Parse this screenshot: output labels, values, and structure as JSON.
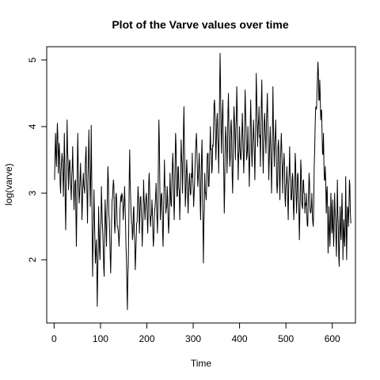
{
  "chart_data": {
    "type": "line",
    "title": "Plot of the Varve values over time",
    "xlabel": "Time",
    "ylabel": "log(varve)",
    "xlim": [
      -16,
      650
    ],
    "ylim": [
      1.05,
      5.2
    ],
    "xticks": [
      0,
      100,
      200,
      300,
      400,
      500,
      600
    ],
    "yticks": [
      2,
      3,
      4,
      5
    ],
    "grid": false,
    "legend": "none",
    "anchors": [
      [
        1,
        3.2
      ],
      [
        3,
        3.9
      ],
      [
        5,
        3.4
      ],
      [
        7,
        4.05
      ],
      [
        9,
        3.3
      ],
      [
        11,
        3.75
      ],
      [
        14,
        3.0
      ],
      [
        17,
        3.6
      ],
      [
        20,
        2.95
      ],
      [
        22,
        3.9
      ],
      [
        25,
        2.45
      ],
      [
        28,
        4.1
      ],
      [
        31,
        3.05
      ],
      [
        34,
        3.5
      ],
      [
        37,
        2.9
      ],
      [
        40,
        3.7
      ],
      [
        43,
        2.75
      ],
      [
        46,
        3.2
      ],
      [
        48,
        2.2
      ],
      [
        51,
        3.9
      ],
      [
        54,
        2.85
      ],
      [
        57,
        3.45
      ],
      [
        60,
        2.6
      ],
      [
        63,
        3.3
      ],
      [
        66,
        3.0
      ],
      [
        69,
        3.7
      ],
      [
        72,
        2.55
      ],
      [
        75,
        3.95
      ],
      [
        78,
        2.8
      ],
      [
        80,
        4.02
      ],
      [
        83,
        1.75
      ],
      [
        86,
        3.05
      ],
      [
        89,
        1.95
      ],
      [
        91,
        2.3
      ],
      [
        93,
        1.3
      ],
      [
        96,
        2.8
      ],
      [
        99,
        2.0
      ],
      [
        102,
        3.1
      ],
      [
        105,
        2.4
      ],
      [
        108,
        1.75
      ],
      [
        110,
        2.9
      ],
      [
        113,
        2.2
      ],
      [
        116,
        3.4
      ],
      [
        119,
        2.6
      ],
      [
        122,
        1.8
      ],
      [
        125,
        2.9
      ],
      [
        128,
        3.2
      ],
      [
        131,
        2.4
      ],
      [
        134,
        3.0
      ],
      [
        137,
        2.5
      ],
      [
        140,
        2.2
      ],
      [
        143,
        2.85
      ],
      [
        146,
        3.0
      ],
      [
        149,
        2.6
      ],
      [
        152,
        3.1
      ],
      [
        155,
        2.2
      ],
      [
        158,
        1.25
      ],
      [
        161,
        2.5
      ],
      [
        163,
        3.65
      ],
      [
        166,
        2.7
      ],
      [
        169,
        2.3
      ],
      [
        172,
        2.8
      ],
      [
        175,
        1.85
      ],
      [
        178,
        2.55
      ],
      [
        181,
        3.1
      ],
      [
        184,
        2.4
      ],
      [
        187,
        2.95
      ],
      [
        190,
        2.2
      ],
      [
        193,
        3.2
      ],
      [
        196,
        2.6
      ],
      [
        199,
        3.0
      ],
      [
        202,
        2.4
      ],
      [
        205,
        3.3
      ],
      [
        208,
        2.5
      ],
      [
        211,
        2.9
      ],
      [
        214,
        2.2
      ],
      [
        217,
        2.75
      ],
      [
        220,
        3.15
      ],
      [
        223,
        2.4
      ],
      [
        226,
        4.1
      ],
      [
        229,
        2.6
      ],
      [
        232,
        3.0
      ],
      [
        235,
        2.2
      ],
      [
        238,
        3.5
      ],
      [
        241,
        2.7
      ],
      [
        244,
        3.1
      ],
      [
        247,
        2.4
      ],
      [
        250,
        3.3
      ],
      [
        253,
        2.8
      ],
      [
        256,
        3.6
      ],
      [
        259,
        2.6
      ],
      [
        262,
        3.9
      ],
      [
        265,
        2.95
      ],
      [
        268,
        3.4
      ],
      [
        271,
        2.6
      ],
      [
        274,
        3.8
      ],
      [
        277,
        3.0
      ],
      [
        280,
        4.3
      ],
      [
        283,
        2.8
      ],
      [
        286,
        3.5
      ],
      [
        289,
        2.7
      ],
      [
        292,
        3.3
      ],
      [
        295,
        3.0
      ],
      [
        298,
        3.6
      ],
      [
        301,
        2.8
      ],
      [
        304,
        3.4
      ],
      [
        307,
        3.9
      ],
      [
        310,
        3.1
      ],
      [
        313,
        3.6
      ],
      [
        316,
        2.6
      ],
      [
        319,
        3.8
      ],
      [
        322,
        1.95
      ],
      [
        325,
        3.3
      ],
      [
        328,
        2.9
      ],
      [
        331,
        3.6
      ],
      [
        334,
        3.1
      ],
      [
        337,
        4.0
      ],
      [
        340,
        3.3
      ],
      [
        343,
        3.7
      ],
      [
        346,
        4.4
      ],
      [
        349,
        3.5
      ],
      [
        352,
        4.2
      ],
      [
        355,
        3.3
      ],
      [
        358,
        5.1
      ],
      [
        361,
        3.6
      ],
      [
        364,
        4.4
      ],
      [
        367,
        2.7
      ],
      [
        370,
        4.0
      ],
      [
        373,
        3.3
      ],
      [
        376,
        4.5
      ],
      [
        379,
        3.4
      ],
      [
        382,
        4.1
      ],
      [
        385,
        3.0
      ],
      [
        388,
        4.3
      ],
      [
        391,
        3.5
      ],
      [
        394,
        4.6
      ],
      [
        397,
        3.2
      ],
      [
        400,
        4.0
      ],
      [
        403,
        3.5
      ],
      [
        406,
        4.2
      ],
      [
        409,
        3.3
      ],
      [
        412,
        4.55
      ],
      [
        415,
        3.5
      ],
      [
        418,
        4.0
      ],
      [
        421,
        3.1
      ],
      [
        424,
        4.4
      ],
      [
        427,
        3.4
      ],
      [
        430,
        4.1
      ],
      [
        433,
        3.2
      ],
      [
        436,
        4.8
      ],
      [
        439,
        3.7
      ],
      [
        442,
        4.3
      ],
      [
        445,
        3.4
      ],
      [
        448,
        4.7
      ],
      [
        451,
        3.3
      ],
      [
        454,
        4.2
      ],
      [
        457,
        3.6
      ],
      [
        460,
        4.5
      ],
      [
        463,
        3.2
      ],
      [
        466,
        4.0
      ],
      [
        469,
        3.0
      ],
      [
        472,
        4.6
      ],
      [
        475,
        3.4
      ],
      [
        478,
        4.1
      ],
      [
        481,
        3.0
      ],
      [
        484,
        3.8
      ],
      [
        487,
        2.9
      ],
      [
        490,
        3.9
      ],
      [
        493,
        3.0
      ],
      [
        496,
        3.6
      ],
      [
        499,
        2.8
      ],
      [
        502,
        3.4
      ],
      [
        505,
        2.6
      ],
      [
        508,
        3.7
      ],
      [
        511,
        2.9
      ],
      [
        514,
        3.3
      ],
      [
        517,
        2.6
      ],
      [
        520,
        3.6
      ],
      [
        523,
        2.7
      ],
      [
        526,
        3.3
      ],
      [
        529,
        2.3
      ],
      [
        532,
        3.5
      ],
      [
        535,
        2.8
      ],
      [
        538,
        3.2
      ],
      [
        541,
        2.7
      ],
      [
        544,
        3.0
      ],
      [
        547,
        2.5
      ],
      [
        550,
        3.3
      ],
      [
        553,
        2.7
      ],
      [
        556,
        3.0
      ],
      [
        559,
        2.5
      ],
      [
        561,
        3.4
      ],
      [
        563,
        4.0
      ],
      [
        565,
        4.3
      ],
      [
        567,
        4.5
      ],
      [
        569,
        4.97
      ],
      [
        571,
        4.4
      ],
      [
        573,
        4.7
      ],
      [
        575,
        4.1
      ],
      [
        577,
        4.25
      ],
      [
        579,
        3.6
      ],
      [
        581,
        3.9
      ],
      [
        583,
        3.2
      ],
      [
        585,
        3.4
      ],
      [
        587,
        2.7
      ],
      [
        589,
        3.1
      ],
      [
        591,
        2.1
      ],
      [
        593,
        2.8
      ],
      [
        595,
        2.2
      ],
      [
        597,
        3.0
      ],
      [
        599,
        2.4
      ],
      [
        601,
        2.9
      ],
      [
        603,
        2.2
      ],
      [
        605,
        3.0
      ],
      [
        607,
        2.6
      ],
      [
        609,
        2.05
      ],
      [
        611,
        3.2
      ],
      [
        613,
        2.5
      ],
      [
        615,
        1.9
      ],
      [
        617,
        2.8
      ],
      [
        619,
        2.3
      ],
      [
        621,
        3.0
      ],
      [
        623,
        2.0
      ],
      [
        625,
        2.6
      ],
      [
        627,
        2.2
      ],
      [
        629,
        3.25
      ],
      [
        631,
        2.0
      ],
      [
        633,
        2.8
      ],
      [
        635,
        2.5
      ],
      [
        637,
        3.2
      ],
      [
        639,
        2.7
      ],
      [
        641,
        2.55
      ]
    ]
  }
}
